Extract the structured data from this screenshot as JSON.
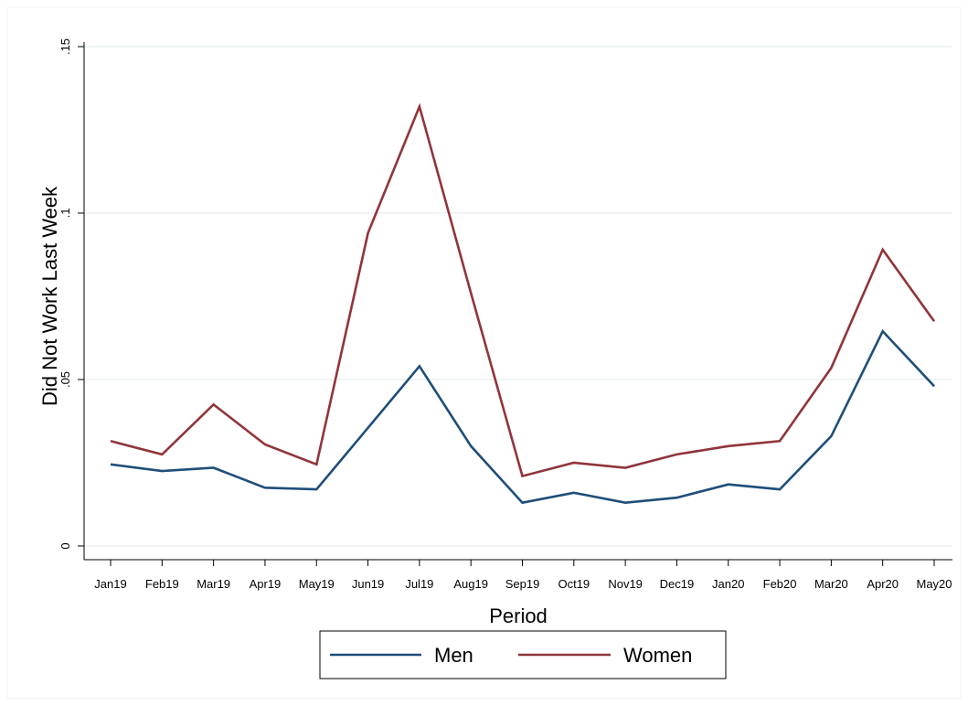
{
  "chart_data": {
    "type": "line",
    "title": "",
    "xlabel": "Period",
    "ylabel": "Did Not Work Last Week",
    "categories": [
      "Jan19",
      "Feb19",
      "Mar19",
      "Apr19",
      "May19",
      "Jun19",
      "Jul19",
      "Aug19",
      "Sep19",
      "Oct19",
      "Nov19",
      "Dec19",
      "Jan20",
      "Feb20",
      "Mar20",
      "Apr20",
      "May20"
    ],
    "ylim": [
      0,
      0.15
    ],
    "yticks": [
      0,
      0.05,
      0.1,
      0.15
    ],
    "ytick_labels": [
      "0",
      ".05",
      ".1",
      ".15"
    ],
    "grid": true,
    "legend_position": "bottom",
    "series": [
      {
        "name": "Men",
        "color": "#1f4e79",
        "values": [
          0.0245,
          0.0225,
          0.0235,
          0.0175,
          0.017,
          0.0355,
          0.054,
          0.03,
          0.013,
          0.016,
          0.013,
          0.0145,
          0.0185,
          0.017,
          0.033,
          0.0645,
          0.048
        ]
      },
      {
        "name": "Women",
        "color": "#90353b",
        "values": [
          0.0315,
          0.0275,
          0.0425,
          0.0305,
          0.0245,
          0.094,
          0.132,
          0.076,
          0.021,
          0.025,
          0.0235,
          0.0275,
          0.03,
          0.0315,
          0.0535,
          0.089,
          0.0675
        ]
      }
    ]
  }
}
